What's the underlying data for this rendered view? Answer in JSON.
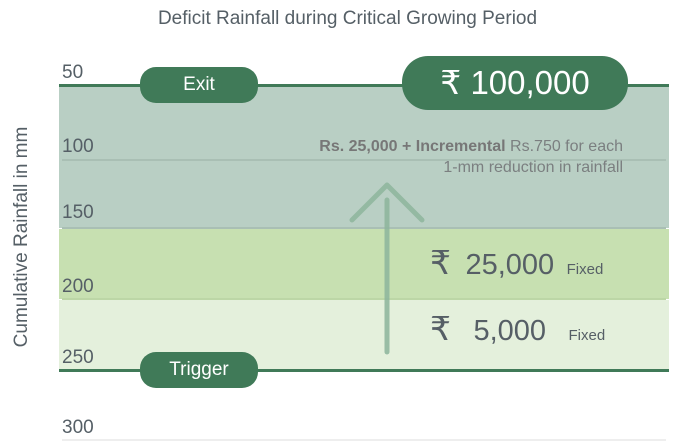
{
  "title": "Deficit Rainfall during Critical Growing Period",
  "y_axis_label": "Cumulative Rainfall in mm",
  "ticks": [
    "50",
    "100",
    "150",
    "200",
    "250",
    "300"
  ],
  "exit_label": "Exit",
  "trigger_label": "Trigger",
  "max_payout": {
    "symbol": "₹",
    "amount": "100,000"
  },
  "incremental_note": {
    "bold": "Rs. 25,000 + Incremental",
    "text": " Rs.750 for each 1-mm reduction in rainfall"
  },
  "tiers": [
    {
      "symbol": "₹",
      "amount": "25,000",
      "label": "Fixed"
    },
    {
      "symbol": "₹",
      "amount": "5,000",
      "label": "Fixed"
    }
  ],
  "colors": {
    "dark_band": "#b9cfc4",
    "mid_band": "#c7e0b1",
    "light_band": "#e4f0dc",
    "accent": "#407a58",
    "arrow": "#8db59c"
  }
}
